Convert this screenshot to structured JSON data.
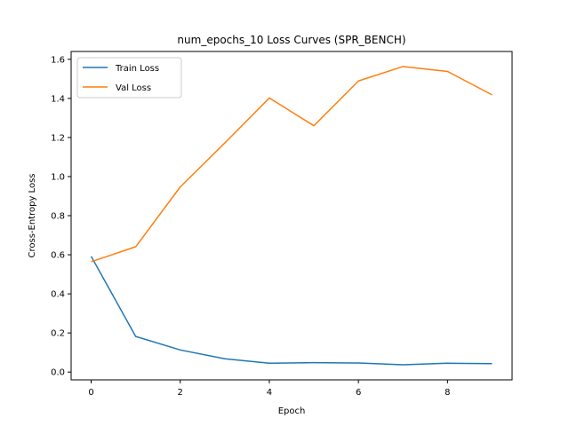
{
  "chart_data": {
    "type": "line",
    "title": "num_epochs_10 Loss Curves (SPR_BENCH)",
    "xlabel": "Epoch",
    "ylabel": "Cross-Entropy Loss",
    "xlim": [
      -0.45,
      9.45
    ],
    "ylim": [
      -0.04,
      1.64
    ],
    "xticks": [
      0,
      2,
      4,
      6,
      8
    ],
    "yticks": [
      0.0,
      0.2,
      0.4,
      0.6,
      0.8,
      1.0,
      1.2,
      1.4,
      1.6
    ],
    "x": [
      0,
      1,
      2,
      3,
      4,
      5,
      6,
      7,
      8,
      9
    ],
    "series": [
      {
        "name": "Train Loss",
        "color": "#1f77b4",
        "values": [
          0.592,
          0.182,
          0.113,
          0.068,
          0.045,
          0.048,
          0.046,
          0.037,
          0.045,
          0.043
        ]
      },
      {
        "name": "Val Loss",
        "color": "#ff7f0e",
        "values": [
          0.564,
          0.641,
          0.947,
          1.172,
          1.402,
          1.26,
          1.489,
          1.563,
          1.538,
          1.418
        ]
      }
    ],
    "grid": false,
    "legend_position": "top-left"
  }
}
